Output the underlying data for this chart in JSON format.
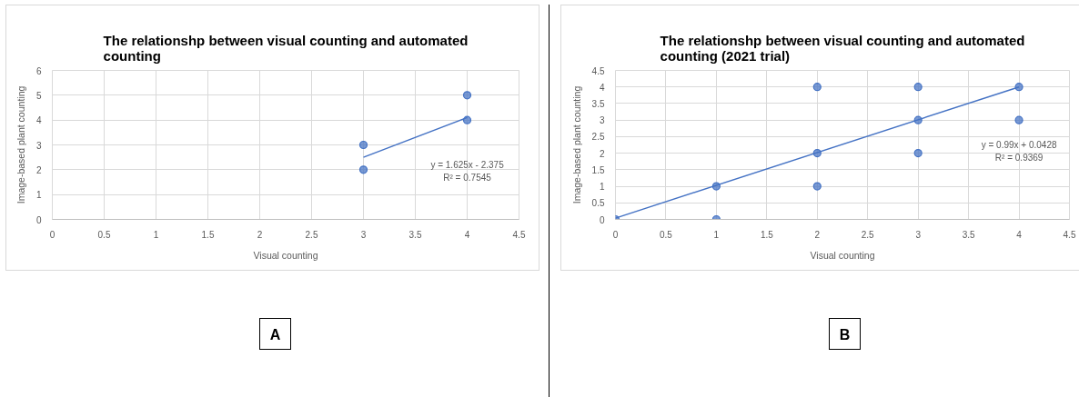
{
  "chart_data": [
    {
      "type": "scatter",
      "title": "The relationshp between visual counting and automated counting",
      "xlabel": "Visual counting",
      "ylabel": "Image-based plant counting",
      "xlim": [
        0,
        4.5
      ],
      "xticks": [
        0,
        0.5,
        1,
        1.5,
        2,
        2.5,
        3,
        3.5,
        4,
        4.5
      ],
      "ylim": [
        0,
        6
      ],
      "yticks": [
        0,
        1,
        2,
        3,
        4,
        5,
        6
      ],
      "grid": true,
      "marker": "circle",
      "series": [
        {
          "color": "#4472c4",
          "x": [
            3,
            3,
            4,
            4
          ],
          "values": [
            3,
            2,
            5,
            4
          ]
        },
        {
          "type": "line",
          "color": "#4472c4",
          "marker": "none",
          "x": [
            3,
            4
          ],
          "values": [
            2.5,
            4.1
          ]
        }
      ],
      "annotations": [
        "y = 1.625x - 2.375",
        "R² = 0.7545",
        "A"
      ]
    },
    {
      "type": "scatter",
      "title": "The relationshp between visual counting and automated counting (2021 trial)",
      "xlabel": "Visual counting",
      "ylabel": "Image-based plant counting",
      "xlim": [
        0,
        4.5
      ],
      "xticks": [
        0,
        0.5,
        1,
        1.5,
        2,
        2.5,
        3,
        3.5,
        4,
        4.5
      ],
      "ylim": [
        0,
        4.5
      ],
      "yticks": [
        0,
        0.5,
        1,
        1.5,
        2,
        2.5,
        3,
        3.5,
        4,
        4.5
      ],
      "grid": true,
      "marker": "circle",
      "series": [
        {
          "color": "#4472c4",
          "x": [
            0,
            1,
            1,
            2,
            2,
            2,
            3,
            3,
            3,
            4,
            4
          ],
          "values": [
            0,
            1,
            0,
            4,
            2,
            1,
            4,
            3,
            2,
            4,
            3
          ]
        },
        {
          "type": "line",
          "color": "#4472c4",
          "marker": "none",
          "x": [
            0,
            4
          ],
          "values": [
            0.04,
            4.0
          ]
        }
      ],
      "annotations": [
        "y = 0.99x + 0.0428",
        "R² = 0.9369",
        "B"
      ]
    }
  ]
}
